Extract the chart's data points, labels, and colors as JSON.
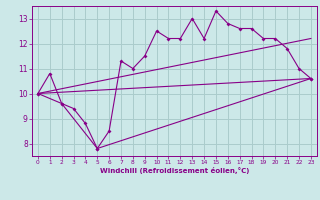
{
  "background_color": "#cce8e8",
  "grid_color": "#aacccc",
  "line_color": "#880088",
  "xlabel": "Windchill (Refroidissement éolien,°C)",
  "xlabel_color": "#880088",
  "tick_color": "#880088",
  "xlim": [
    -0.5,
    23.5
  ],
  "ylim": [
    7.5,
    13.5
  ],
  "yticks": [
    8,
    9,
    10,
    11,
    12,
    13
  ],
  "xticks": [
    0,
    1,
    2,
    3,
    4,
    5,
    6,
    7,
    8,
    9,
    10,
    11,
    12,
    13,
    14,
    15,
    16,
    17,
    18,
    19,
    20,
    21,
    22,
    23
  ],
  "line1_x": [
    0,
    1,
    2,
    3,
    4,
    5,
    6,
    7,
    8,
    9,
    10,
    11,
    12,
    13,
    14,
    15,
    16,
    17,
    18,
    19,
    20,
    21,
    22,
    23
  ],
  "line1_y": [
    10.0,
    10.8,
    9.6,
    9.4,
    8.8,
    7.8,
    8.5,
    11.3,
    11.0,
    11.5,
    12.5,
    12.2,
    12.2,
    13.0,
    12.2,
    13.3,
    12.8,
    12.6,
    12.6,
    12.2,
    12.2,
    11.8,
    11.0,
    10.6
  ],
  "line2_x": [
    0,
    2,
    5,
    23
  ],
  "line2_y": [
    10.0,
    9.6,
    7.8,
    10.6
  ],
  "line3_x": [
    0,
    23
  ],
  "line3_y": [
    10.0,
    12.2
  ],
  "line4_x": [
    0,
    23
  ],
  "line4_y": [
    10.0,
    10.6
  ]
}
